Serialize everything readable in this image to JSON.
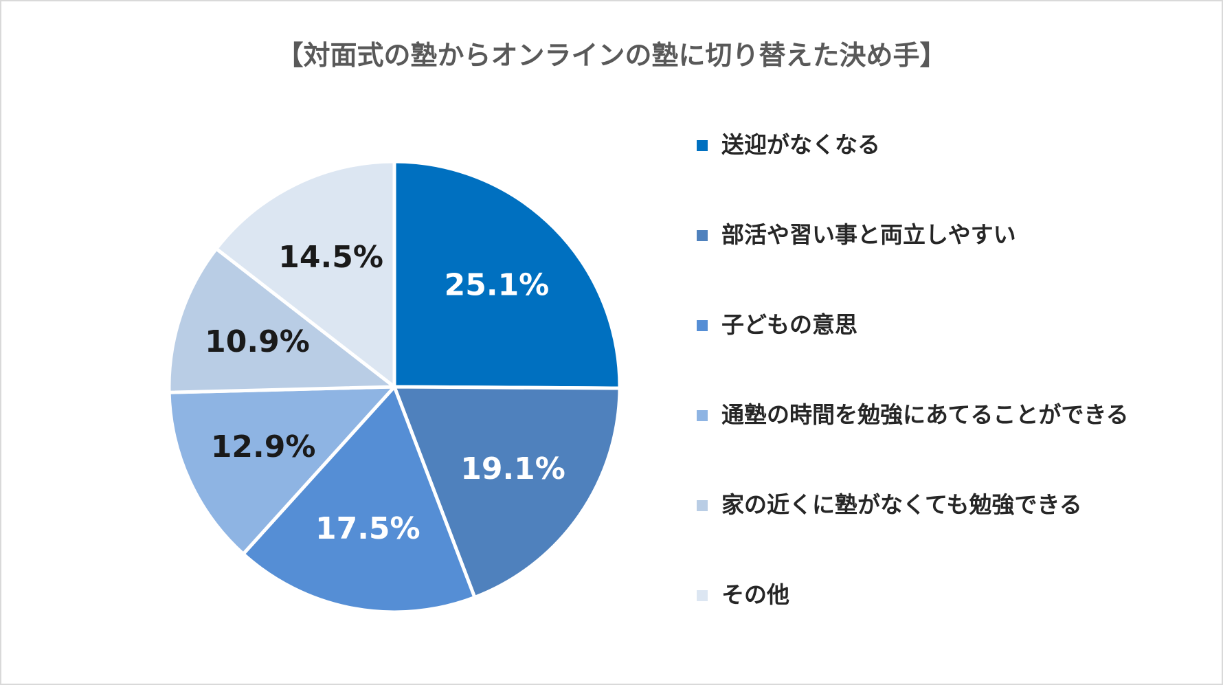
{
  "chart_data": {
    "type": "pie",
    "title": "【対面式の塾からオンラインの塾に切り替えた決め手】",
    "legend_position": "right",
    "unit": "%",
    "slices": [
      {
        "label": "送迎がなくなる",
        "value": 25.1,
        "value_label": "25.1%",
        "color": "#0070c0",
        "label_color": "#ffffff"
      },
      {
        "label": "部活や習い事と両立しやすい",
        "value": 19.1,
        "value_label": "19.1%",
        "color": "#4f81bd",
        "label_color": "#ffffff"
      },
      {
        "label": "子どもの意思",
        "value": 17.5,
        "value_label": "17.5%",
        "color": "#558ed5",
        "label_color": "#ffffff"
      },
      {
        "label": "通塾の時間を勉強にあてることができる",
        "value": 12.9,
        "value_label": "12.9%",
        "color": "#8eb4e3",
        "label_color": "#1a1a1a"
      },
      {
        "label": "家の近くに塾がなくても勉強できる",
        "value": 10.9,
        "value_label": "10.9%",
        "color": "#b9cde5",
        "label_color": "#1a1a1a"
      },
      {
        "label": "その他",
        "value": 14.5,
        "value_label": "14.5%",
        "color": "#dce6f2",
        "label_color": "#1a1a1a"
      }
    ]
  }
}
